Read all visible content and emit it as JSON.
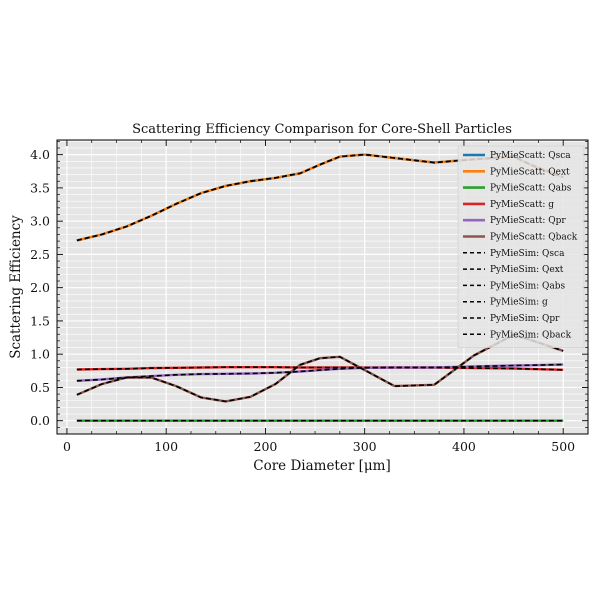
{
  "chart_data": {
    "type": "line",
    "title": "Scattering Efficiency Comparison for Core-Shell Particles",
    "xlabel": "Core Diameter [μm]",
    "ylabel": "Scattering Efficiency",
    "xlim": [
      -10,
      525
    ],
    "ylim": [
      -0.2,
      4.22
    ],
    "xticks": [
      0,
      100,
      200,
      300,
      400,
      500
    ],
    "xtick_labels": [
      "0",
      "100",
      "200",
      "300",
      "400",
      "500"
    ],
    "yticks": [
      0.0,
      0.5,
      1.0,
      1.5,
      2.0,
      2.5,
      3.0,
      3.5,
      4.0
    ],
    "ytick_labels": [
      "0.0",
      "0.5",
      "1.0",
      "1.5",
      "2.0",
      "2.5",
      "3.0",
      "3.5",
      "4.0"
    ],
    "grid": true,
    "legend_position": "upper right",
    "background": "#e5e5e5",
    "x": [
      10,
      35,
      60,
      85,
      110,
      135,
      160,
      185,
      210,
      235,
      255,
      275,
      300,
      330,
      370,
      410,
      450,
      470,
      500
    ],
    "series": [
      {
        "name": "PyMieScatt: Qsca",
        "color": "#1f77b4",
        "style": "solid",
        "values": [
          2.71,
          2.8,
          2.92,
          3.08,
          3.26,
          3.42,
          3.53,
          3.6,
          3.65,
          3.72,
          3.85,
          3.97,
          4.0,
          3.95,
          3.88,
          3.93,
          3.97,
          3.83,
          3.66
        ]
      },
      {
        "name": "PyMieScatt: Qext",
        "color": "#ff7f0e",
        "style": "solid",
        "values": [
          2.71,
          2.8,
          2.92,
          3.08,
          3.26,
          3.42,
          3.53,
          3.6,
          3.65,
          3.72,
          3.85,
          3.97,
          4.0,
          3.95,
          3.88,
          3.93,
          3.97,
          3.83,
          3.66
        ]
      },
      {
        "name": "PyMieScatt: Qabs",
        "color": "#2ca02c",
        "style": "solid",
        "values": [
          0,
          0,
          0,
          0,
          0,
          0,
          0,
          0,
          0,
          0,
          0,
          0,
          0,
          0,
          0,
          0,
          0,
          0,
          0
        ]
      },
      {
        "name": "PyMieScatt: g",
        "color": "#d62728",
        "style": "solid",
        "values": [
          0.77,
          0.775,
          0.78,
          0.79,
          0.795,
          0.8,
          0.805,
          0.805,
          0.805,
          0.8,
          0.8,
          0.8,
          0.8,
          0.8,
          0.8,
          0.79,
          0.785,
          0.775,
          0.765
        ]
      },
      {
        "name": "PyMieScatt: Qpr",
        "color": "#9467bd",
        "style": "solid",
        "values": [
          0.6,
          0.62,
          0.65,
          0.67,
          0.69,
          0.7,
          0.705,
          0.71,
          0.72,
          0.74,
          0.76,
          0.78,
          0.795,
          0.8,
          0.8,
          0.815,
          0.83,
          0.835,
          0.845
        ]
      },
      {
        "name": "PyMieScatt: Qback",
        "color": "#8c564b",
        "style": "solid",
        "values": [
          0.39,
          0.55,
          0.65,
          0.65,
          0.52,
          0.35,
          0.29,
          0.36,
          0.55,
          0.84,
          0.94,
          0.96,
          0.76,
          0.52,
          0.54,
          0.98,
          1.29,
          1.2,
          1.05
        ]
      },
      {
        "name": "PyMieSim: Qsca",
        "color": "#000000",
        "style": "dashed",
        "values": [
          2.71,
          2.8,
          2.92,
          3.08,
          3.26,
          3.42,
          3.53,
          3.6,
          3.65,
          3.72,
          3.85,
          3.97,
          4.0,
          3.95,
          3.88,
          3.93,
          3.97,
          3.83,
          3.66
        ]
      },
      {
        "name": "PyMieSim: Qext",
        "color": "#000000",
        "style": "dashed",
        "values": [
          2.71,
          2.8,
          2.92,
          3.08,
          3.26,
          3.42,
          3.53,
          3.6,
          3.65,
          3.72,
          3.85,
          3.97,
          4.0,
          3.95,
          3.88,
          3.93,
          3.97,
          3.83,
          3.66
        ]
      },
      {
        "name": "PyMieSim: Qabs",
        "color": "#000000",
        "style": "dashed",
        "values": [
          0,
          0,
          0,
          0,
          0,
          0,
          0,
          0,
          0,
          0,
          0,
          0,
          0,
          0,
          0,
          0,
          0,
          0,
          0
        ]
      },
      {
        "name": "PyMieSim: g",
        "color": "#000000",
        "style": "dashed",
        "values": [
          0.77,
          0.775,
          0.78,
          0.79,
          0.795,
          0.8,
          0.805,
          0.805,
          0.805,
          0.8,
          0.8,
          0.8,
          0.8,
          0.8,
          0.8,
          0.79,
          0.785,
          0.775,
          0.765
        ]
      },
      {
        "name": "PyMieSim: Qpr",
        "color": "#000000",
        "style": "dashed",
        "values": [
          0.6,
          0.62,
          0.65,
          0.67,
          0.69,
          0.7,
          0.705,
          0.71,
          0.72,
          0.74,
          0.76,
          0.78,
          0.795,
          0.8,
          0.8,
          0.815,
          0.83,
          0.835,
          0.845
        ]
      },
      {
        "name": "PyMieSim: Qback",
        "color": "#000000",
        "style": "dashed",
        "values": [
          0.39,
          0.55,
          0.65,
          0.65,
          0.52,
          0.35,
          0.29,
          0.36,
          0.55,
          0.84,
          0.94,
          0.96,
          0.76,
          0.52,
          0.54,
          0.98,
          1.29,
          1.2,
          1.05
        ]
      }
    ]
  }
}
